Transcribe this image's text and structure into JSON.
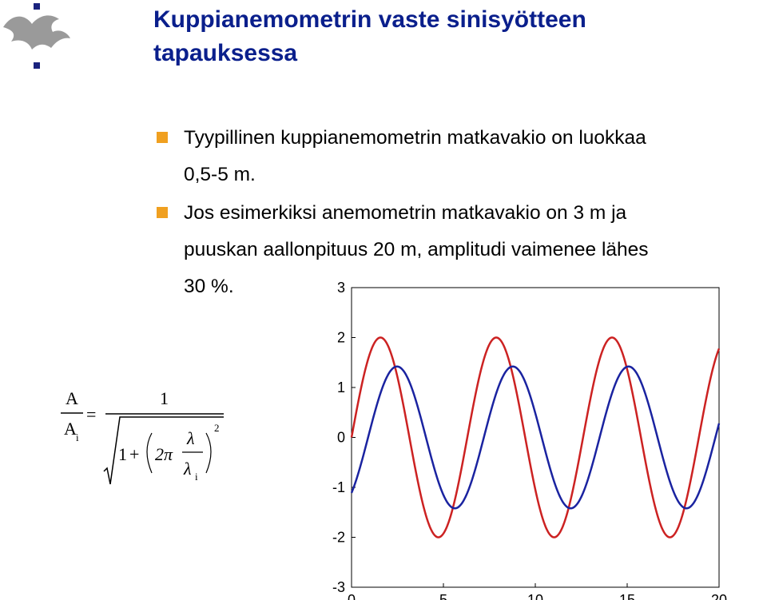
{
  "slide": {
    "title_line1": "Kuppianemometrin vaste sinisyötteen",
    "title_line2": "tapauksessa",
    "bullets": [
      {
        "lines": [
          "Tyypillinen kuppianemometrin matkavakio on luokkaa",
          "0,5-5 m."
        ]
      },
      {
        "lines": [
          "Jos esimerkiksi anemometrin matkavakio on 3 m ja",
          "puuskan aallonpituus 20 m, amplitudi vaimenee lähes",
          "30 %."
        ]
      }
    ],
    "logo_icon": "flame-crest-logo-icon",
    "colors": {
      "title": "#0a1f8c",
      "bullet_marker": "#f0a020"
    }
  },
  "formula": {
    "lhs_numerator": "A",
    "lhs_denominator": "A",
    "lhs_denominator_sub": "i",
    "equals": "=",
    "rhs_numerator": "1",
    "one": "1",
    "plus": "+",
    "two_pi": "2π",
    "lambda": "λ",
    "lambda_i": "λ",
    "lambda_i_sub": "i",
    "exponent": "2"
  },
  "chart_data": {
    "type": "line",
    "title": "",
    "xlabel": "",
    "ylabel": "",
    "xlim": [
      0,
      20
    ],
    "ylim": [
      -3,
      3
    ],
    "x_ticks": [
      0,
      5,
      10,
      15,
      20
    ],
    "y_ticks": [
      3,
      2,
      1,
      0,
      -1,
      -2,
      -3
    ],
    "grid": false,
    "series": [
      {
        "color": "#cc2222",
        "function": "2*sin(2*pi*x/6.3)",
        "amplitude": 2.0,
        "period": 6.3,
        "phase_shift": 0.0
      },
      {
        "color": "#1a23a0",
        "function": "1.42*sin(2*pi*(x-0.9)/6.3)",
        "amplitude": 1.42,
        "period": 6.3,
        "phase_shift": 0.9
      }
    ]
  }
}
